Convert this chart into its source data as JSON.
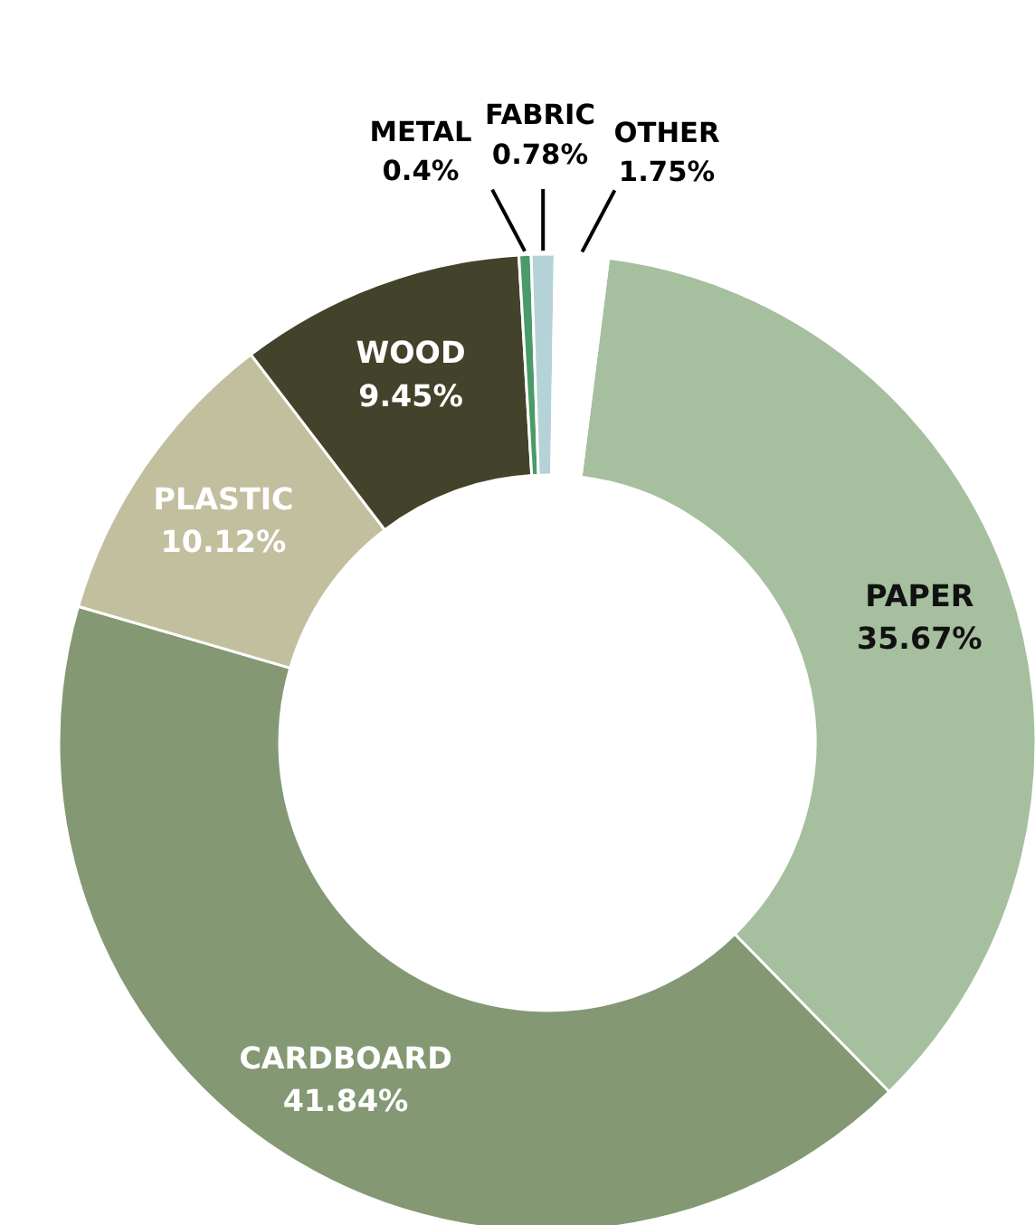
{
  "chart_data": {
    "type": "donut",
    "categories": [
      "PAPER",
      "CARDBOARD",
      "PLASTIC",
      "WOOD",
      "METAL",
      "FABRIC",
      "OTHER"
    ],
    "values": [
      35.67,
      41.84,
      10.12,
      9.45,
      0.4,
      0.78,
      1.75
    ],
    "colors": [
      "#a5bf9f",
      "#839873",
      "#c2bf9f",
      "#43432b",
      "#4a9a6a",
      "#b5d3d6",
      "#ffffff"
    ],
    "value_labels": [
      "35.67%",
      "41.84%",
      "10.12%",
      "9.45%",
      "0.4%",
      "0.78%",
      "1.75%"
    ]
  }
}
